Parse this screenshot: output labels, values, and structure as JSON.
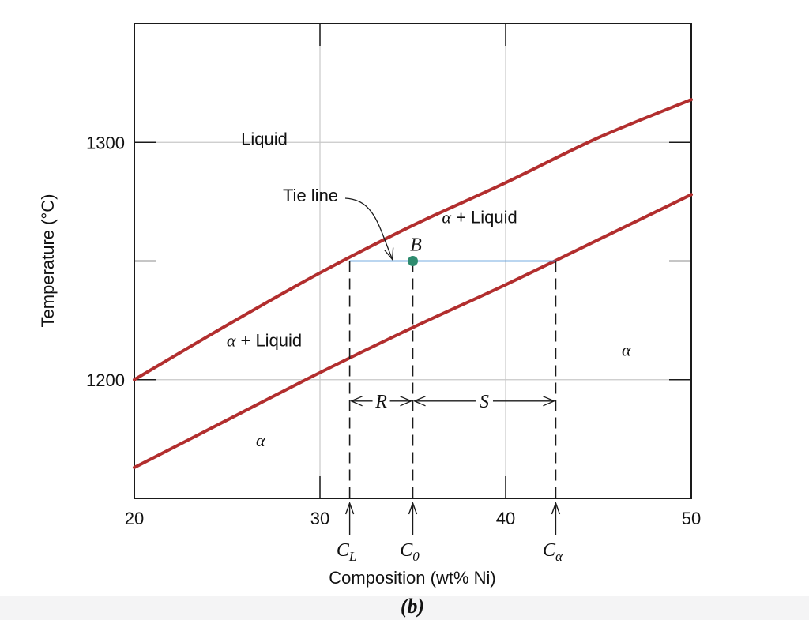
{
  "colors": {
    "liquidus": "#b22e2e",
    "solidus": "#b22e2e",
    "tie_line": "#4a90d9",
    "point": "#2e8b6e",
    "grid": "#c8c8c8",
    "frame": "#1a1a1a"
  },
  "chart_data": {
    "type": "line",
    "title": "",
    "figure_label": "(b)",
    "xlabel": "Composition (wt% Ni)",
    "ylabel": "Temperature (°C)",
    "xlim": [
      20,
      50
    ],
    "ylim": [
      1150,
      1350
    ],
    "x_ticks": [
      20,
      30,
      40,
      50
    ],
    "y_ticks": [
      1200,
      1300
    ],
    "y_minor_ticks": [
      1250
    ],
    "grid": true,
    "series": [
      {
        "curve": "liquidus",
        "x": [
          20,
          25,
          30,
          35,
          40,
          45,
          50
        ],
        "y": [
          1200,
          1223,
          1245,
          1265,
          1283,
          1302,
          1318
        ]
      },
      {
        "curve": "solidus",
        "x": [
          20,
          25,
          30,
          35,
          40,
          45,
          50
        ],
        "y": [
          1163,
          1183,
          1203,
          1222,
          1240,
          1259,
          1278
        ]
      }
    ],
    "tie_line": {
      "y": 1250,
      "x_start": 31.6,
      "x_end": 42.7,
      "label": "Tie line"
    },
    "point": {
      "label": "B",
      "x": 35,
      "y": 1250
    },
    "compositions": [
      {
        "name": "C",
        "sub": "L",
        "x": 31.6
      },
      {
        "name": "C",
        "sub": "0",
        "x": 35
      },
      {
        "name": "C",
        "sub": "α",
        "x": 42.7
      }
    ],
    "lever": [
      {
        "label": "R",
        "x_start": 31.6,
        "x_end": 35
      },
      {
        "label": "S",
        "x_start": 35,
        "x_end": 42.7
      }
    ],
    "lever_y": 1191,
    "regions": [
      {
        "label": "Liquid",
        "x": 27,
        "y": 1299
      },
      {
        "label": "α + Liquid",
        "x": 38.6,
        "y": 1266
      },
      {
        "label": "α + Liquid",
        "x": 27,
        "y": 1214
      },
      {
        "label": "α",
        "x": 46.5,
        "y": 1210
      },
      {
        "label": "α",
        "x": 26.8,
        "y": 1172
      }
    ]
  }
}
